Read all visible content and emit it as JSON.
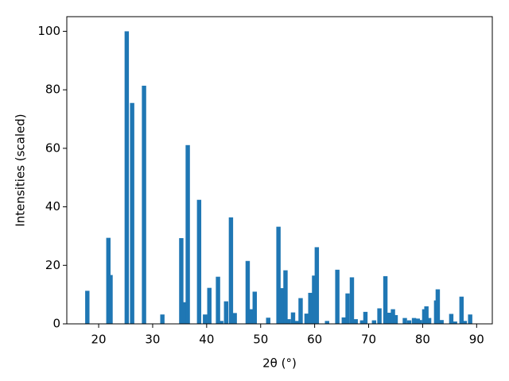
{
  "chart_data": {
    "type": "bar",
    "x_label": "2θ (°)",
    "y_label": "Intensities (scaled)",
    "x": [
      17.9,
      21.8,
      22.2,
      25.2,
      26.2,
      28.4,
      31.8,
      35.3,
      35.9,
      36.5,
      38.6,
      39.7,
      40.5,
      42.1,
      42.7,
      43.6,
      44.5,
      45.2,
      47.6,
      48.2,
      48.9,
      51.4,
      53.3,
      53.9,
      54.6,
      55.2,
      56.0,
      56.7,
      57.4,
      58.5,
      59.2,
      59.9,
      60.4,
      62.3,
      64.2,
      65.4,
      66.1,
      66.9,
      67.6,
      68.8,
      69.4,
      71.0,
      72.0,
      73.1,
      73.8,
      74.5,
      75.0,
      76.7,
      77.5,
      78.4,
      79.1,
      79.5,
      80.3,
      80.7,
      81.2,
      82.5,
      82.8,
      83.5,
      85.3,
      86.0,
      87.2,
      87.8,
      88.8
    ],
    "values": [
      11.3,
      29.4,
      16.7,
      100,
      75.5,
      81.4,
      3.2,
      29.3,
      7.4,
      61.1,
      42.4,
      3.2,
      12.3,
      16.1,
      1,
      7.7,
      36.4,
      3.7,
      21.5,
      5,
      11,
      2.1,
      33.2,
      12.2,
      18.3,
      1.6,
      3.9,
      1,
      8.8,
      3.5,
      10.6,
      16.5,
      26.2,
      1,
      18.5,
      2.2,
      10.4,
      15.9,
      1.6,
      1.2,
      4.1,
      1.2,
      5.3,
      16.3,
      3.8,
      5,
      3,
      2,
      1.2,
      2,
      1.8,
      1.3,
      5,
      6,
      2,
      8,
      11.8,
      1.3,
      3.4,
      0.8,
      9.3,
      1,
      3.2
    ],
    "color": "#1f77b4",
    "xlim": [
      14.1,
      92.9
    ],
    "xticks": [
      20,
      30,
      40,
      50,
      60,
      70,
      80,
      90
    ],
    "ylim": [
      0,
      105
    ],
    "yticks": [
      0,
      20,
      40,
      60,
      80,
      100
    ]
  }
}
